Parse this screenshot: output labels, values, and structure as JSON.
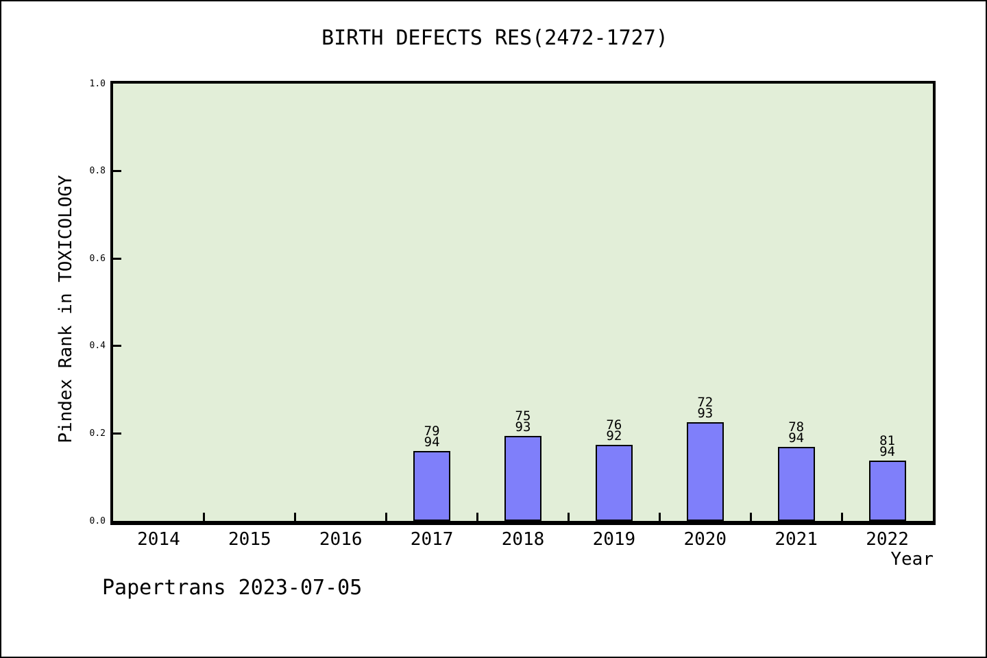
{
  "title": "BIRTH DEFECTS RES(2472-1727)",
  "footer": "Papertrans 2023-07-05",
  "chart_data": {
    "type": "bar",
    "title": "BIRTH DEFECTS RES(2472-1727)",
    "xlabel": "Year",
    "ylabel": "Pindex Rank in TOXICOLOGY",
    "ylim": [
      0.0,
      1.0
    ],
    "y_ticks": [
      "0.0",
      "0.2",
      "0.4",
      "0.6",
      "0.8",
      "1.0"
    ],
    "grid": false,
    "legend": "none",
    "categories": [
      "2014",
      "2015",
      "2016",
      "2017",
      "2018",
      "2019",
      "2020",
      "2021",
      "2022"
    ],
    "bars": [
      {
        "category": "2017",
        "rank": 79,
        "total": 94,
        "label_line1": "79",
        "label_line2": "94",
        "height_fraction": 0.16
      },
      {
        "category": "2018",
        "rank": 75,
        "total": 93,
        "label_line1": "75",
        "label_line2": "93",
        "height_fraction": 0.194
      },
      {
        "category": "2019",
        "rank": 76,
        "total": 92,
        "label_line1": "76",
        "label_line2": "92",
        "height_fraction": 0.174
      },
      {
        "category": "2020",
        "rank": 72,
        "total": 93,
        "label_line1": "72",
        "label_line2": "93",
        "height_fraction": 0.226
      },
      {
        "category": "2021",
        "rank": 78,
        "total": 94,
        "label_line1": "78",
        "label_line2": "94",
        "height_fraction": 0.17
      },
      {
        "category": "2022",
        "rank": 81,
        "total": 94,
        "label_line1": "81",
        "label_line2": "94",
        "height_fraction": 0.138
      }
    ],
    "colors": {
      "bar_fill": "#7f7ffa",
      "bar_edge": "#000000",
      "plot_background": "#e2eed8",
      "figure_background": "#ffffff",
      "text": "#000000"
    }
  }
}
